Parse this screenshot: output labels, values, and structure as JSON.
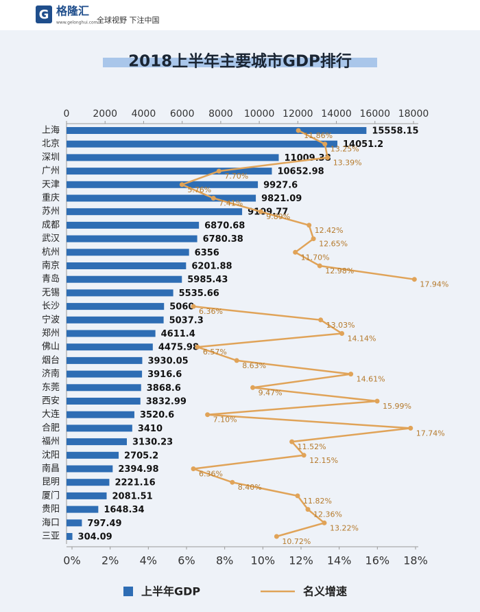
{
  "header": {
    "logo": "格隆汇",
    "url": "www.gelonghui.com",
    "slogan": "全球视野 下注中国"
  },
  "chart_data": {
    "type": "bar",
    "orientation": "horizontal",
    "title": "2018上半年主要城市GDP排行",
    "categories": [
      "上海",
      "北京",
      "深圳",
      "广州",
      "天津",
      "重庆",
      "苏州",
      "成都",
      "武汉",
      "杭州",
      "南京",
      "青岛",
      "无锡",
      "长沙",
      "宁波",
      "郑州",
      "佛山",
      "烟台",
      "济南",
      "东莞",
      "西安",
      "大连",
      "合肥",
      "福州",
      "沈阳",
      "南昌",
      "昆明",
      "厦门",
      "贵阳",
      "海口",
      "三亚"
    ],
    "series": [
      {
        "name": "上半年GDP",
        "type": "bar",
        "color": "#2e6db4",
        "values": [
          15558.15,
          14051.2,
          11009.38,
          10652.98,
          9927.6,
          9821.09,
          9109.77,
          6870.68,
          6780.38,
          6356,
          6201.88,
          5985.43,
          5535.66,
          5060,
          5037.3,
          4611.4,
          4475.98,
          3930.05,
          3916.6,
          3868.6,
          3832.99,
          3520.6,
          3410,
          3130.23,
          2705.2,
          2394.98,
          2221.16,
          2081.51,
          1648.34,
          797.49,
          304.09
        ]
      },
      {
        "name": "名义增速",
        "type": "line",
        "axis": "x2",
        "color": "#e0a358",
        "values": [
          11.86,
          13.25,
          13.39,
          7.7,
          5.76,
          7.41,
          9.89,
          12.42,
          12.65,
          11.7,
          12.98,
          17.94,
          null,
          6.36,
          13.03,
          14.14,
          6.57,
          8.63,
          14.61,
          9.47,
          15.99,
          7.1,
          17.74,
          11.52,
          12.15,
          6.36,
          8.4,
          11.82,
          12.36,
          13.22,
          10.72
        ],
        "value_labels": [
          "11.86%",
          "13.25%",
          "13.39%",
          "7.70%",
          "5.76%",
          "7.41%",
          "9.89%",
          "12.42%",
          "12.65%",
          "11.70%",
          "12.98%",
          "17.94%",
          null,
          "6.36%",
          "13.03%",
          "14.14%",
          "6.57%",
          "8.63%",
          "14.61%",
          "9.47%",
          "15.99%",
          "7.10%",
          "17.74%",
          "11.52%",
          "12.15%",
          "6.36%",
          "8.40%",
          "11.82%",
          "12.36%",
          "13.22%",
          "10.72%"
        ]
      }
    ],
    "xlim": [
      0,
      18000
    ],
    "xticks": [
      0,
      2000,
      4000,
      6000,
      8000,
      10000,
      12000,
      14000,
      16000,
      18000
    ],
    "x2lim": [
      0,
      18
    ],
    "x2ticks": [
      {
        "value": 0,
        "label": "0%"
      },
      {
        "value": 2,
        "label": "2%"
      },
      {
        "value": 4,
        "label": "4%"
      },
      {
        "value": 6,
        "label": "6%"
      },
      {
        "value": 8,
        "label": "8%"
      },
      {
        "value": 10,
        "label": "10%"
      },
      {
        "value": 12,
        "label": "12%"
      },
      {
        "value": 14,
        "label": "14%"
      },
      {
        "value": 16,
        "label": "16%"
      },
      {
        "value": 18,
        "label": "18%"
      }
    ]
  }
}
